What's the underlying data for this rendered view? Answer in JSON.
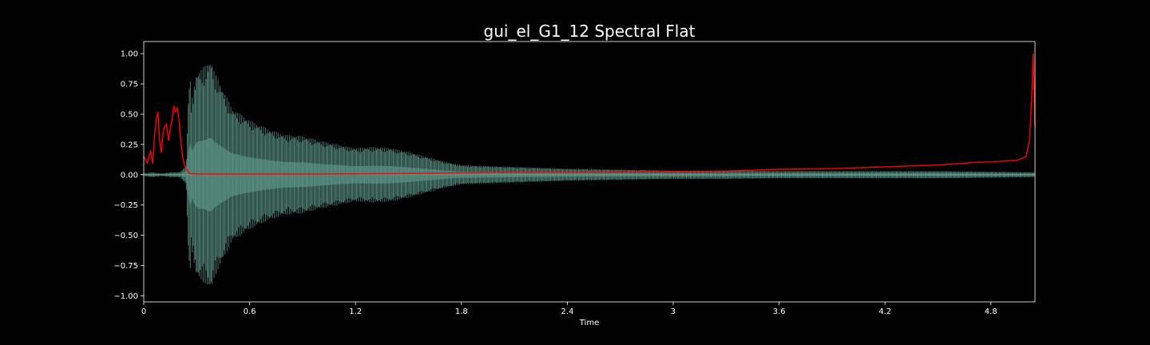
{
  "chart_data": {
    "type": "line",
    "title": "gui_el_G1_12 Spectral Flat",
    "xlabel": "Time",
    "ylabel": "",
    "xlim": [
      0,
      5.05
    ],
    "ylim": [
      -1.05,
      1.1
    ],
    "x_ticks": [
      0,
      0.6,
      1.2,
      1.8,
      2.4,
      3.0,
      3.6,
      4.2,
      4.8
    ],
    "x_tick_labels": [
      "0",
      "0.6",
      "1.2",
      "1.8",
      "2.4",
      "3",
      "3.6",
      "4.2",
      "4.8"
    ],
    "y_ticks": [
      1.0,
      0.75,
      0.5,
      0.25,
      0.0,
      -0.25,
      -0.5,
      -0.75,
      -1.0
    ],
    "y_tick_labels": [
      "1.00",
      "0.75",
      "0.50",
      "0.25",
      "0.00",
      "−0.25",
      "−0.50",
      "−0.75",
      "−1.00"
    ],
    "grid": false,
    "colors": {
      "background": "#000000",
      "waveform": "#5f9a8c",
      "waveform_fill": "#3d5f56",
      "flatness": "#ff0000",
      "axes": "#ffffff"
    },
    "series": [
      {
        "kind": "waveform-envelope",
        "x": [
          0,
          0.05,
          0.1,
          0.15,
          0.2,
          0.22,
          0.24,
          0.25,
          0.26,
          0.27,
          0.3,
          0.35,
          0.38,
          0.4,
          0.45,
          0.5,
          0.6,
          0.7,
          0.8,
          0.9,
          1.0,
          1.1,
          1.2,
          1.3,
          1.4,
          1.5,
          1.6,
          1.7,
          1.8,
          2.0,
          2.2,
          2.4,
          2.6,
          2.8,
          3.0,
          3.3,
          3.6,
          3.9,
          4.2,
          4.5,
          4.8,
          5.05
        ],
        "values": [
          0.01,
          0.02,
          0.01,
          0.02,
          0.02,
          0.04,
          0.08,
          0.5,
          0.88,
          0.6,
          0.85,
          0.9,
          0.96,
          0.85,
          0.7,
          0.55,
          0.45,
          0.38,
          0.33,
          0.32,
          0.28,
          0.25,
          0.22,
          0.23,
          0.22,
          0.19,
          0.15,
          0.11,
          0.08,
          0.07,
          0.06,
          0.05,
          0.045,
          0.04,
          0.035,
          0.035,
          0.03,
          0.03,
          0.03,
          0.03,
          0.025,
          0.02
        ]
      },
      {
        "kind": "spectral-flatness",
        "x": [
          0,
          0.02,
          0.04,
          0.05,
          0.06,
          0.07,
          0.08,
          0.09,
          0.1,
          0.11,
          0.12,
          0.13,
          0.14,
          0.15,
          0.16,
          0.17,
          0.18,
          0.19,
          0.2,
          0.21,
          0.22,
          0.23,
          0.24,
          0.25,
          0.26,
          0.3,
          0.5,
          1.0,
          1.5,
          2.0,
          2.5,
          3.0,
          3.3,
          3.6,
          3.9,
          4.2,
          4.5,
          4.7,
          4.85,
          4.95,
          5.0,
          5.02,
          5.03,
          5.04,
          5.05
        ],
        "values": [
          0.15,
          0.1,
          0.2,
          0.09,
          0.3,
          0.45,
          0.52,
          0.28,
          0.18,
          0.35,
          0.4,
          0.42,
          0.28,
          0.38,
          0.45,
          0.57,
          0.52,
          0.55,
          0.45,
          0.28,
          0.15,
          0.08,
          0.05,
          0.03,
          0.01,
          0.005,
          0.005,
          0.005,
          0.01,
          0.02,
          0.02,
          0.025,
          0.03,
          0.045,
          0.05,
          0.065,
          0.08,
          0.1,
          0.11,
          0.12,
          0.15,
          0.3,
          0.6,
          1.0,
          0.4
        ]
      }
    ]
  }
}
